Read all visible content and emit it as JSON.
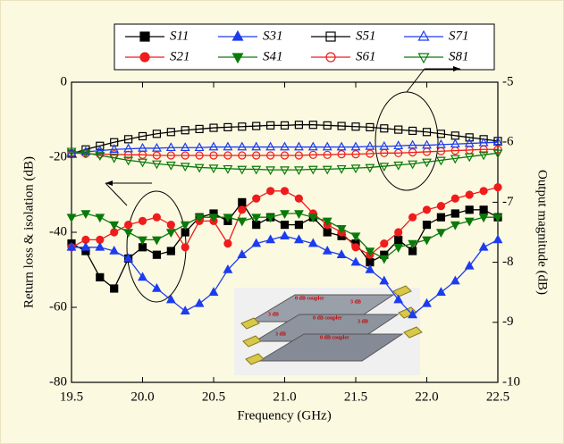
{
  "chart_data": {
    "type": "line",
    "x_label": "Frequency (GHz)",
    "y_label": "Return loss & isolation (dB)",
    "y2_label": "Output magnitude (dB)",
    "xlim": [
      19.5,
      22.5
    ],
    "xticks": [
      19.5,
      {
        "value": 20,
        "label": "20.0"
      },
      20.5,
      {
        "value": 21,
        "label": "21.0"
      },
      21.5,
      {
        "value": 22,
        "label": "22.0"
      },
      22.5
    ],
    "ylim": [
      -80,
      0
    ],
    "yticks": [
      0,
      -20,
      -40,
      -60,
      -80
    ],
    "y2lim": [
      -10,
      -5
    ],
    "y2ticks": [
      -5,
      -6,
      -7,
      -8,
      -9,
      -10
    ],
    "x": [
      19.5,
      19.6,
      19.7,
      19.8,
      19.9,
      20.0,
      20.1,
      20.2,
      20.3,
      20.4,
      20.5,
      20.6,
      20.7,
      20.8,
      20.9,
      21.0,
      21.1,
      21.2,
      21.3,
      21.4,
      21.5,
      21.6,
      21.7,
      21.8,
      21.9,
      22.0,
      22.1,
      22.2,
      22.3,
      22.4,
      22.5
    ],
    "series": [
      {
        "name": "S11",
        "color": "#000000",
        "marker": "square",
        "filled": true,
        "values": [
          -43,
          -45,
          -52,
          -55,
          -47,
          -44,
          -46,
          -45,
          -40,
          -36,
          -35,
          -37,
          -32,
          -38,
          -36,
          -38,
          -38,
          -36,
          -40,
          -41,
          -43,
          -48,
          -46,
          -42,
          -45,
          -38,
          -36,
          -35,
          -34,
          -34,
          -36
        ]
      },
      {
        "name": "S21",
        "color": "#ee1c1c",
        "marker": "circle",
        "filled": true,
        "values": [
          -44,
          -42,
          -42,
          -40,
          -38,
          -37,
          -36,
          -38,
          -44,
          -37,
          -37,
          -43,
          -34,
          -31,
          -29,
          -29,
          -31,
          -35,
          -38,
          -40,
          -44,
          -46,
          -43,
          -40,
          -36,
          -34,
          -33,
          -31,
          -30,
          -29,
          -28
        ]
      },
      {
        "name": "S31",
        "color": "#1c3cf0",
        "marker": "triangle",
        "filled": true,
        "values": [
          -44,
          -44,
          -44,
          -45,
          -47,
          -52,
          -55,
          -58,
          -61,
          -59,
          -56,
          -50,
          -46,
          -43,
          -42,
          -41,
          -42,
          -43,
          -45,
          -46,
          -48,
          -50,
          -53,
          -58,
          -62,
          -59,
          -56,
          -53,
          -49,
          -44,
          -42
        ]
      },
      {
        "name": "S41",
        "color": "#0a7a0a",
        "marker": "triangle-down",
        "filled": true,
        "values": [
          -36,
          -35,
          -36,
          -38,
          -40,
          -42,
          -42,
          -40,
          -38,
          -36,
          -36,
          -36,
          -37,
          -36,
          -36,
          -35,
          -35,
          -36,
          -37,
          -39,
          -41,
          -45,
          -47,
          -44,
          -43,
          -42,
          -40,
          -38,
          -37,
          -36,
          -36
        ]
      },
      {
        "name": "S51",
        "color": "#000000",
        "marker": "square",
        "filled": false,
        "axis": "y2",
        "values": [
          -6.19,
          -6.12,
          -6.06,
          -6.0,
          -5.95,
          -5.9,
          -5.86,
          -5.83,
          -5.8,
          -5.78,
          -5.76,
          -5.75,
          -5.74,
          -5.73,
          -5.72,
          -5.72,
          -5.71,
          -5.71,
          -5.72,
          -5.73,
          -5.74,
          -5.75,
          -5.77,
          -5.79,
          -5.81,
          -5.83,
          -5.86,
          -5.89,
          -5.92,
          -5.95,
          -5.98
        ]
      },
      {
        "name": "S61",
        "color": "#ee1c1c",
        "marker": "circle",
        "filled": false,
        "axis": "y2",
        "values": [
          -6.18,
          -6.19,
          -6.2,
          -6.2,
          -6.21,
          -6.21,
          -6.22,
          -6.22,
          -6.22,
          -6.22,
          -6.22,
          -6.22,
          -6.22,
          -6.22,
          -6.22,
          -6.22,
          -6.22,
          -6.21,
          -6.21,
          -6.2,
          -6.2,
          -6.19,
          -6.18,
          -6.18,
          -6.17,
          -6.16,
          -6.15,
          -6.14,
          -6.13,
          -6.12,
          -6.12
        ]
      },
      {
        "name": "S71",
        "color": "#1c3cf0",
        "marker": "triangle",
        "filled": false,
        "axis": "y2",
        "values": [
          -6.18,
          -6.16,
          -6.14,
          -6.12,
          -6.11,
          -6.1,
          -6.1,
          -6.09,
          -6.09,
          -6.09,
          -6.08,
          -6.08,
          -6.08,
          -6.08,
          -6.08,
          -6.08,
          -6.08,
          -6.08,
          -6.08,
          -6.08,
          -6.08,
          -6.07,
          -6.07,
          -6.06,
          -6.05,
          -6.05,
          -6.04,
          -6.03,
          -6.02,
          -6.01,
          -6.0
        ]
      },
      {
        "name": "S81",
        "color": "#0a7a0a",
        "marker": "triangle-down",
        "filled": false,
        "axis": "y2",
        "values": [
          -6.15,
          -6.18,
          -6.22,
          -6.26,
          -6.3,
          -6.33,
          -6.36,
          -6.38,
          -6.4,
          -6.42,
          -6.43,
          -6.44,
          -6.45,
          -6.45,
          -6.46,
          -6.46,
          -6.46,
          -6.45,
          -6.45,
          -6.44,
          -6.43,
          -6.42,
          -6.4,
          -6.38,
          -6.36,
          -6.33,
          -6.3,
          -6.27,
          -6.24,
          -6.21,
          -6.18
        ]
      }
    ],
    "inset_labels": [
      "0 dB coupler",
      "3 dB",
      "3 dB",
      "0 dB coupler",
      "3 dB",
      "3 dB",
      "0 dB coupler"
    ]
  }
}
